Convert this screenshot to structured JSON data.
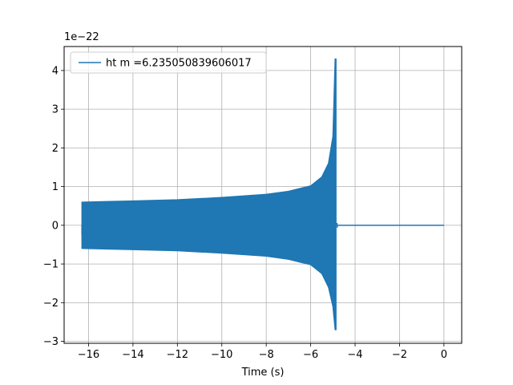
{
  "chart_data": {
    "type": "line",
    "title": "",
    "xlabel": "Time (s)",
    "ylabel": "",
    "y_offset_label": "1e−22",
    "y_scale_factor": 1e-22,
    "xlim": [
      -17.1,
      0.8
    ],
    "ylim": [
      -3.05,
      4.62
    ],
    "xticks": [
      -16,
      -14,
      -12,
      -10,
      -8,
      -6,
      -4,
      -2,
      0
    ],
    "xtick_labels": [
      "−16",
      "−14",
      "−12",
      "−10",
      "−8",
      "−6",
      "−4",
      "−2",
      "0"
    ],
    "yticks": [
      -3,
      -2,
      -1,
      0,
      1,
      2,
      3,
      4
    ],
    "ytick_labels": [
      "−3",
      "−2",
      "−1",
      "0",
      "1",
      "2",
      "3",
      "4"
    ],
    "grid": true,
    "legend_position": "top-left",
    "series": [
      {
        "name": "ht m =6.235050839606017",
        "color": "#1f77b4",
        "description_of_shape": "dense oscillation (chirp) from t=-16.3 to t=-4.85, then zero until t=0",
        "signal_start": -16.3,
        "merger_time": -4.85,
        "signal_end": 0.0,
        "upper_envelope": {
          "x": [
            -16.3,
            -14,
            -12,
            -10,
            -8,
            -7,
            -6,
            -5.5,
            -5.2,
            -5.0,
            -4.9
          ],
          "y": [
            0.6,
            0.63,
            0.66,
            0.72,
            0.8,
            0.88,
            1.02,
            1.25,
            1.6,
            2.3,
            4.3
          ]
        },
        "lower_envelope": {
          "x": [
            -16.3,
            -14,
            -12,
            -10,
            -8,
            -7,
            -6,
            -5.5,
            -5.2,
            -5.0,
            -4.9
          ],
          "y": [
            -0.6,
            -0.63,
            -0.66,
            -0.72,
            -0.8,
            -0.88,
            -1.02,
            -1.25,
            -1.6,
            -2.1,
            -2.7
          ]
        }
      }
    ]
  }
}
